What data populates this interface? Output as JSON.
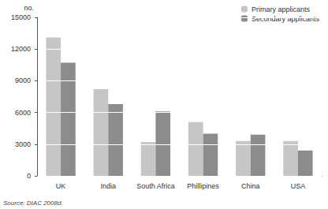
{
  "chart_data": {
    "type": "bar",
    "ylabel": "no.",
    "categories": [
      "UK",
      "India",
      "South Africa",
      "Phillipines",
      "China",
      "USA"
    ],
    "series": [
      {
        "name": "Primary applicants",
        "color": "#c6c6c6",
        "values": [
          13100,
          8200,
          3200,
          5100,
          3300,
          3300
        ]
      },
      {
        "name": "Secondary applicants",
        "color": "#8c8c8c",
        "values": [
          10700,
          6800,
          6100,
          4000,
          3900,
          2400
        ]
      }
    ],
    "ylim": [
      0,
      15000
    ],
    "yticks": [
      0,
      3000,
      6000,
      9000,
      12000,
      15000
    ],
    "grid": true,
    "legend": "top right",
    "annotations": [
      "Source: DIAC 2008d."
    ]
  }
}
